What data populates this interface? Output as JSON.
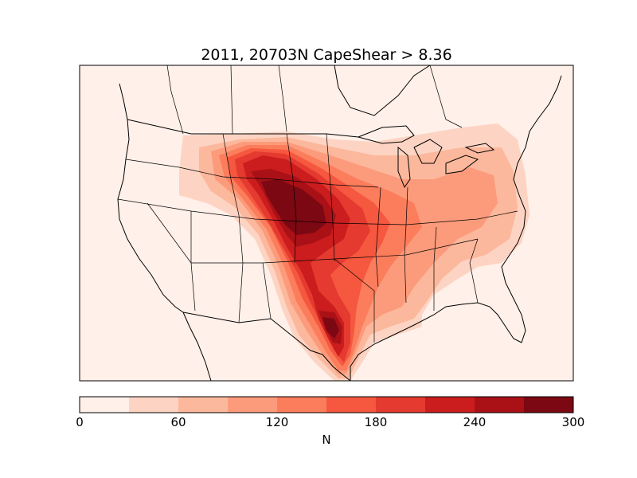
{
  "title": "2011, 20703N CapeShear > 8.36",
  "colorbar": {
    "label": "N",
    "min": 0,
    "max": 300,
    "ticks": [
      "0",
      "60",
      "120",
      "180",
      "240",
      "300"
    ],
    "bins": [
      {
        "from": 0,
        "to": 30,
        "color": "#fff0e9"
      },
      {
        "from": 30,
        "to": 60,
        "color": "#fdd4c3"
      },
      {
        "from": 60,
        "to": 90,
        "color": "#fcb89c"
      },
      {
        "from": 90,
        "to": 120,
        "color": "#fc9b7b"
      },
      {
        "from": 120,
        "to": 150,
        "color": "#fb7d5c"
      },
      {
        "from": 150,
        "to": 180,
        "color": "#f5573f"
      },
      {
        "from": 180,
        "to": 210,
        "color": "#e43a2f"
      },
      {
        "from": 210,
        "to": 240,
        "color": "#cb1d1e"
      },
      {
        "from": 240,
        "to": 270,
        "color": "#a91117"
      },
      {
        "from": 270,
        "to": 300,
        "color": "#7b0812"
      }
    ]
  },
  "map": {
    "background_color": "#fff0e9",
    "coast_color": "#000000"
  }
}
